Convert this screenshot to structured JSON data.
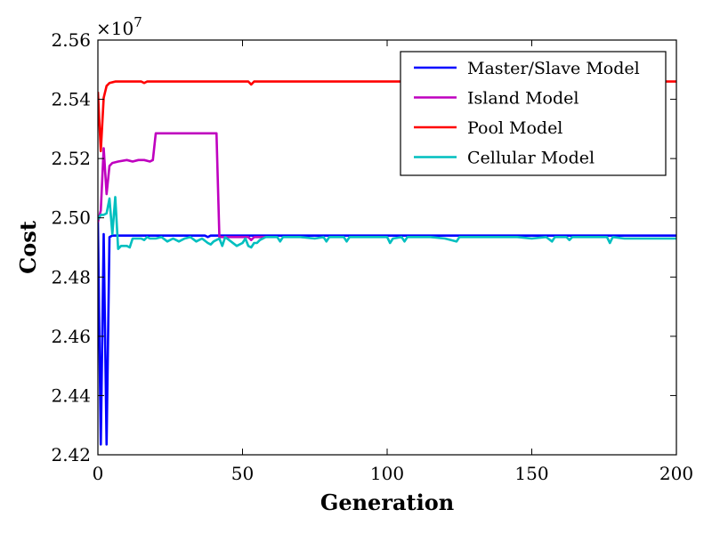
{
  "chart_data": {
    "type": "line",
    "xlabel": "Generation",
    "ylabel": "Cost",
    "offset_label": "×10^7",
    "xlim": [
      0,
      200
    ],
    "ylim": [
      2.42,
      2.56
    ],
    "scale_exponent": 7,
    "xticks": [
      0,
      50,
      100,
      150,
      200
    ],
    "xtick_labels": [
      "0",
      "50",
      "100",
      "150",
      "200"
    ],
    "yticks": [
      2.42,
      2.44,
      2.46,
      2.48,
      2.5,
      2.52,
      2.54,
      2.56
    ],
    "ytick_labels": [
      "2.42",
      "2.44",
      "2.46",
      "2.48",
      "2.50",
      "2.52",
      "2.54",
      "2.56"
    ],
    "grid": false,
    "legend_position": "top-right",
    "series": [
      {
        "name": "Master/Slave Model",
        "color": "#0000ff",
        "points": [
          [
            0,
            2.499
          ],
          [
            1,
            2.4235
          ],
          [
            2,
            2.4945
          ],
          [
            3,
            2.4235
          ],
          [
            4,
            2.4935
          ],
          [
            5,
            2.494
          ],
          [
            8,
            2.494
          ],
          [
            15,
            2.494
          ],
          [
            30,
            2.494
          ],
          [
            37,
            2.494
          ],
          [
            38,
            2.4935
          ],
          [
            39,
            2.494
          ],
          [
            50,
            2.494
          ],
          [
            100,
            2.494
          ],
          [
            150,
            2.494
          ],
          [
            200,
            2.494
          ]
        ]
      },
      {
        "name": "Island Model",
        "color": "#bf00bf",
        "points": [
          [
            0,
            2.4985
          ],
          [
            1,
            2.5025
          ],
          [
            2,
            2.5235
          ],
          [
            3,
            2.508
          ],
          [
            4,
            2.5175
          ],
          [
            5,
            2.5185
          ],
          [
            7,
            2.519
          ],
          [
            10,
            2.5195
          ],
          [
            12,
            2.519
          ],
          [
            14,
            2.5195
          ],
          [
            16,
            2.5195
          ],
          [
            18,
            2.519
          ],
          [
            19,
            2.5195
          ],
          [
            20,
            2.5285
          ],
          [
            25,
            2.5285
          ],
          [
            30,
            2.5285
          ],
          [
            35,
            2.5285
          ],
          [
            40,
            2.5285
          ],
          [
            41,
            2.5285
          ],
          [
            42,
            2.4935
          ],
          [
            46,
            2.4935
          ],
          [
            50,
            2.4935
          ],
          [
            52,
            2.4935
          ],
          [
            53,
            2.4925
          ],
          [
            54,
            2.4935
          ],
          [
            56,
            2.4935
          ],
          [
            58,
            2.4935
          ]
        ]
      },
      {
        "name": "Pool Model",
        "color": "#ff0000",
        "points": [
          [
            0,
            2.5425
          ],
          [
            1,
            2.5225
          ],
          [
            2,
            2.5405
          ],
          [
            3,
            2.5445
          ],
          [
            4,
            2.5455
          ],
          [
            6,
            2.546
          ],
          [
            10,
            2.546
          ],
          [
            15,
            2.546
          ],
          [
            16,
            2.5455
          ],
          [
            17,
            2.546
          ],
          [
            20,
            2.546
          ],
          [
            30,
            2.546
          ],
          [
            40,
            2.546
          ],
          [
            50,
            2.546
          ],
          [
            52,
            2.546
          ],
          [
            53,
            2.545
          ],
          [
            54,
            2.546
          ],
          [
            60,
            2.546
          ],
          [
            100,
            2.546
          ],
          [
            150,
            2.546
          ],
          [
            200,
            2.546
          ]
        ]
      },
      {
        "name": "Cellular Model",
        "color": "#00bfbf",
        "points": [
          [
            0,
            2.4995
          ],
          [
            1,
            2.501
          ],
          [
            2,
            2.501
          ],
          [
            3,
            2.5015
          ],
          [
            4,
            2.5065
          ],
          [
            5,
            2.4945
          ],
          [
            6,
            2.507
          ],
          [
            7,
            2.4895
          ],
          [
            8,
            2.4905
          ],
          [
            9,
            2.4905
          ],
          [
            10,
            2.4905
          ],
          [
            11,
            2.49
          ],
          [
            12,
            2.493
          ],
          [
            13,
            2.493
          ],
          [
            15,
            2.493
          ],
          [
            16,
            2.4925
          ],
          [
            17,
            2.4935
          ],
          [
            18,
            2.493
          ],
          [
            20,
            2.493
          ],
          [
            22,
            2.4935
          ],
          [
            24,
            2.492
          ],
          [
            26,
            2.493
          ],
          [
            28,
            2.492
          ],
          [
            30,
            2.493
          ],
          [
            32,
            2.4935
          ],
          [
            34,
            2.492
          ],
          [
            36,
            2.493
          ],
          [
            38,
            2.4915
          ],
          [
            39,
            2.491
          ],
          [
            40,
            2.492
          ],
          [
            42,
            2.493
          ],
          [
            43,
            2.4905
          ],
          [
            44,
            2.4935
          ],
          [
            46,
            2.492
          ],
          [
            48,
            2.4905
          ],
          [
            50,
            2.4915
          ],
          [
            51,
            2.493
          ],
          [
            52,
            2.4905
          ],
          [
            53,
            2.49
          ],
          [
            54,
            2.4915
          ],
          [
            55,
            2.4915
          ],
          [
            56,
            2.4925
          ],
          [
            58,
            2.4935
          ],
          [
            60,
            2.4935
          ],
          [
            62,
            2.4935
          ],
          [
            63,
            2.492
          ],
          [
            64,
            2.4935
          ],
          [
            70,
            2.4935
          ],
          [
            75,
            2.493
          ],
          [
            78,
            2.4935
          ],
          [
            79,
            2.492
          ],
          [
            80,
            2.4935
          ],
          [
            85,
            2.4935
          ],
          [
            86,
            2.492
          ],
          [
            87,
            2.4935
          ],
          [
            92,
            2.4935
          ],
          [
            100,
            2.4935
          ],
          [
            101,
            2.4915
          ],
          [
            102,
            2.493
          ],
          [
            105,
            2.4935
          ],
          [
            106,
            2.492
          ],
          [
            107,
            2.4935
          ],
          [
            115,
            2.4935
          ],
          [
            120,
            2.493
          ],
          [
            124,
            2.492
          ],
          [
            125,
            2.4935
          ],
          [
            135,
            2.4935
          ],
          [
            145,
            2.4935
          ],
          [
            150,
            2.493
          ],
          [
            155,
            2.4935
          ],
          [
            157,
            2.492
          ],
          [
            158,
            2.4935
          ],
          [
            162,
            2.4935
          ],
          [
            163,
            2.4925
          ],
          [
            164,
            2.4935
          ],
          [
            170,
            2.4935
          ],
          [
            176,
            2.4935
          ],
          [
            177,
            2.4915
          ],
          [
            178,
            2.4935
          ],
          [
            182,
            2.493
          ],
          [
            190,
            2.493
          ],
          [
            200,
            2.493
          ]
        ]
      }
    ]
  }
}
